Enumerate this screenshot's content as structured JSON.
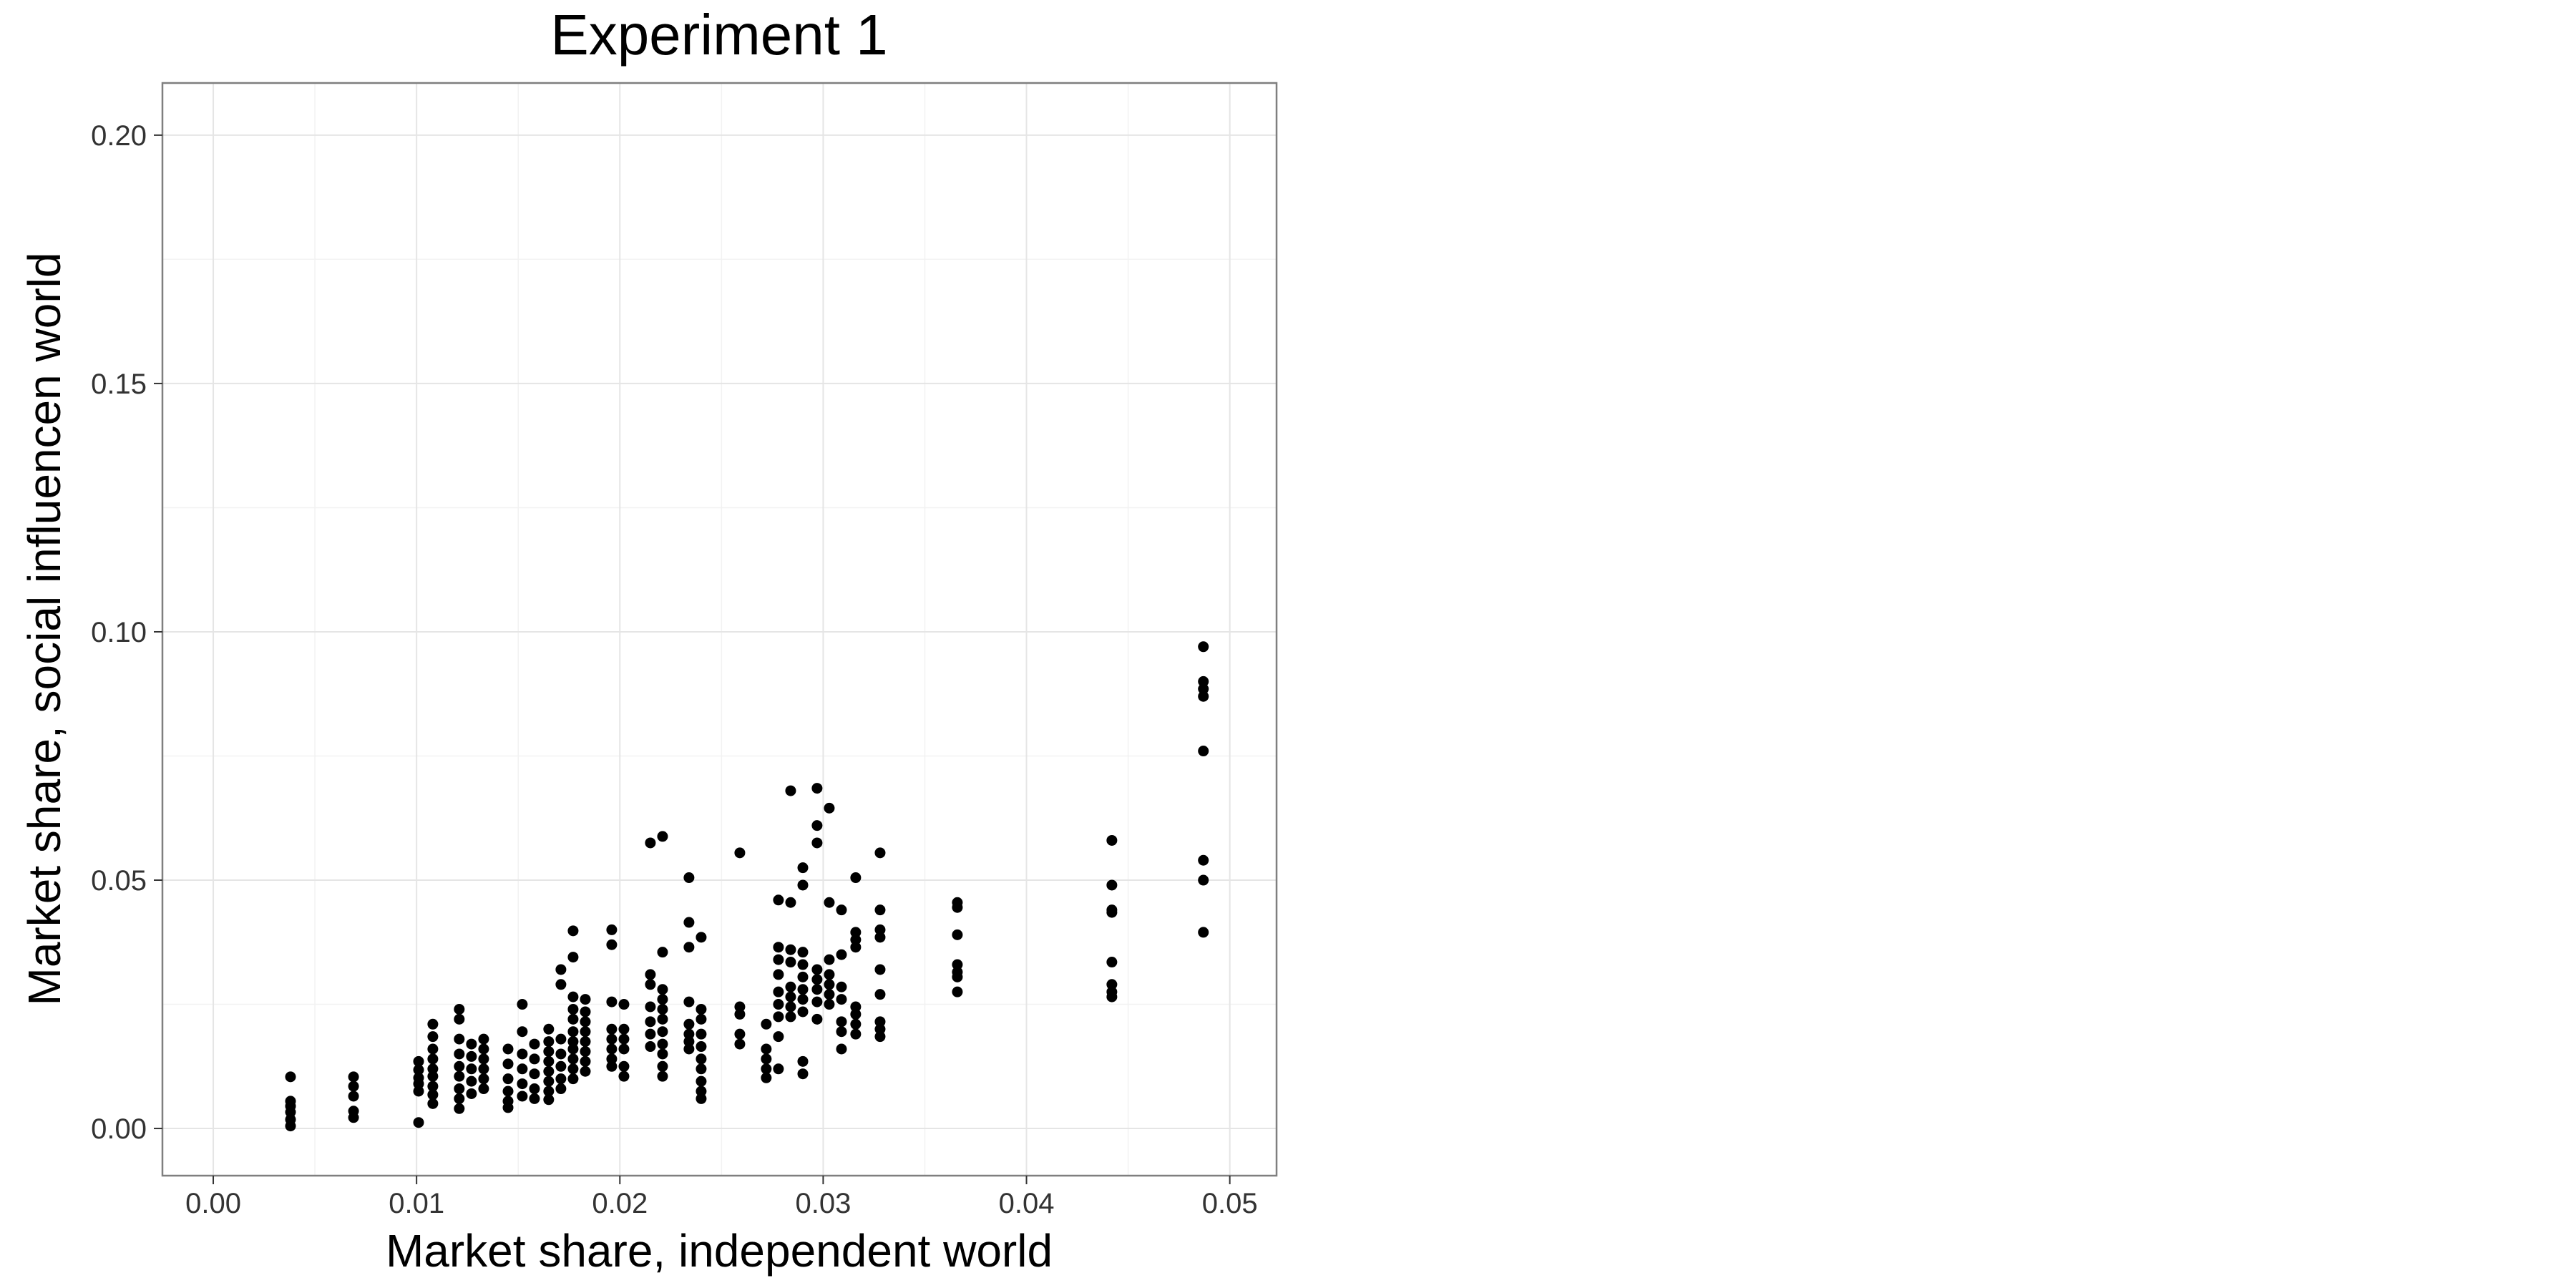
{
  "chart_data": {
    "type": "scatter",
    "title": "Experiment 1",
    "xlabel": "Market share, independent world",
    "ylabel": "Market share, social influencen world",
    "xlim": [
      -0.0025,
      0.0523
    ],
    "ylim": [
      -0.0095,
      0.2105
    ],
    "xticks": [
      0.0,
      0.01,
      0.02,
      0.03,
      0.04,
      0.05
    ],
    "xtick_labels": [
      "0.00",
      "0.01",
      "0.02",
      "0.03",
      "0.04",
      "0.05"
    ],
    "yticks": [
      0.0,
      0.05,
      0.1,
      0.15,
      0.2
    ],
    "ytick_labels": [
      "0.00",
      "0.05",
      "0.10",
      "0.15",
      "0.20"
    ],
    "grid": true,
    "legend": "none",
    "point_color": "#000000",
    "points": [
      {
        "x": 0.0038,
        "y": 0.0104
      },
      {
        "x": 0.0038,
        "y": 0.0055
      },
      {
        "x": 0.0038,
        "y": 0.0045
      },
      {
        "x": 0.0038,
        "y": 0.0033
      },
      {
        "x": 0.0038,
        "y": 0.0018
      },
      {
        "x": 0.0038,
        "y": 0.0005
      },
      {
        "x": 0.0069,
        "y": 0.0104
      },
      {
        "x": 0.0069,
        "y": 0.0085
      },
      {
        "x": 0.0069,
        "y": 0.0065
      },
      {
        "x": 0.0069,
        "y": 0.0035
      },
      {
        "x": 0.0069,
        "y": 0.0022
      },
      {
        "x": 0.0101,
        "y": 0.0135
      },
      {
        "x": 0.0101,
        "y": 0.0118
      },
      {
        "x": 0.0101,
        "y": 0.0102
      },
      {
        "x": 0.0101,
        "y": 0.009
      },
      {
        "x": 0.0101,
        "y": 0.0075
      },
      {
        "x": 0.0101,
        "y": 0.0012
      },
      {
        "x": 0.0108,
        "y": 0.021
      },
      {
        "x": 0.0108,
        "y": 0.0185
      },
      {
        "x": 0.0108,
        "y": 0.016
      },
      {
        "x": 0.0108,
        "y": 0.014
      },
      {
        "x": 0.0108,
        "y": 0.012
      },
      {
        "x": 0.0108,
        "y": 0.0105
      },
      {
        "x": 0.0108,
        "y": 0.0085
      },
      {
        "x": 0.0108,
        "y": 0.0068
      },
      {
        "x": 0.0108,
        "y": 0.005
      },
      {
        "x": 0.0121,
        "y": 0.024
      },
      {
        "x": 0.0121,
        "y": 0.022
      },
      {
        "x": 0.0121,
        "y": 0.018
      },
      {
        "x": 0.0121,
        "y": 0.015
      },
      {
        "x": 0.0121,
        "y": 0.0125
      },
      {
        "x": 0.0121,
        "y": 0.0105
      },
      {
        "x": 0.0121,
        "y": 0.008
      },
      {
        "x": 0.0121,
        "y": 0.006
      },
      {
        "x": 0.0121,
        "y": 0.004
      },
      {
        "x": 0.0127,
        "y": 0.017
      },
      {
        "x": 0.0127,
        "y": 0.0145
      },
      {
        "x": 0.0127,
        "y": 0.012
      },
      {
        "x": 0.0127,
        "y": 0.0095
      },
      {
        "x": 0.0127,
        "y": 0.007
      },
      {
        "x": 0.0133,
        "y": 0.018
      },
      {
        "x": 0.0133,
        "y": 0.016
      },
      {
        "x": 0.0133,
        "y": 0.014
      },
      {
        "x": 0.0133,
        "y": 0.012
      },
      {
        "x": 0.0133,
        "y": 0.01
      },
      {
        "x": 0.0133,
        "y": 0.008
      },
      {
        "x": 0.0145,
        "y": 0.016
      },
      {
        "x": 0.0145,
        "y": 0.013
      },
      {
        "x": 0.0145,
        "y": 0.01
      },
      {
        "x": 0.0145,
        "y": 0.0075
      },
      {
        "x": 0.0145,
        "y": 0.0055
      },
      {
        "x": 0.0145,
        "y": 0.0042
      },
      {
        "x": 0.0152,
        "y": 0.025
      },
      {
        "x": 0.0152,
        "y": 0.0195
      },
      {
        "x": 0.0152,
        "y": 0.015
      },
      {
        "x": 0.0152,
        "y": 0.012
      },
      {
        "x": 0.0152,
        "y": 0.009
      },
      {
        "x": 0.0152,
        "y": 0.0065
      },
      {
        "x": 0.0158,
        "y": 0.017
      },
      {
        "x": 0.0158,
        "y": 0.014
      },
      {
        "x": 0.0158,
        "y": 0.011
      },
      {
        "x": 0.0158,
        "y": 0.008
      },
      {
        "x": 0.0158,
        "y": 0.006
      },
      {
        "x": 0.0165,
        "y": 0.02
      },
      {
        "x": 0.0165,
        "y": 0.0175
      },
      {
        "x": 0.0165,
        "y": 0.0155
      },
      {
        "x": 0.0165,
        "y": 0.0135
      },
      {
        "x": 0.0165,
        "y": 0.0115
      },
      {
        "x": 0.0165,
        "y": 0.0095
      },
      {
        "x": 0.0165,
        "y": 0.0075
      },
      {
        "x": 0.0165,
        "y": 0.0058
      },
      {
        "x": 0.0171,
        "y": 0.032
      },
      {
        "x": 0.0171,
        "y": 0.029
      },
      {
        "x": 0.0171,
        "y": 0.018
      },
      {
        "x": 0.0171,
        "y": 0.015
      },
      {
        "x": 0.0171,
        "y": 0.0125
      },
      {
        "x": 0.0171,
        "y": 0.01
      },
      {
        "x": 0.0171,
        "y": 0.008
      },
      {
        "x": 0.0177,
        "y": 0.0398
      },
      {
        "x": 0.0177,
        "y": 0.0345
      },
      {
        "x": 0.0177,
        "y": 0.0265
      },
      {
        "x": 0.0177,
        "y": 0.024
      },
      {
        "x": 0.0177,
        "y": 0.022
      },
      {
        "x": 0.0177,
        "y": 0.0195
      },
      {
        "x": 0.0177,
        "y": 0.0175
      },
      {
        "x": 0.0177,
        "y": 0.016
      },
      {
        "x": 0.0177,
        "y": 0.014
      },
      {
        "x": 0.0177,
        "y": 0.012
      },
      {
        "x": 0.0177,
        "y": 0.01
      },
      {
        "x": 0.0183,
        "y": 0.026
      },
      {
        "x": 0.0183,
        "y": 0.0235
      },
      {
        "x": 0.0183,
        "y": 0.0215
      },
      {
        "x": 0.0183,
        "y": 0.0195
      },
      {
        "x": 0.0183,
        "y": 0.0175
      },
      {
        "x": 0.0183,
        "y": 0.0155
      },
      {
        "x": 0.0183,
        "y": 0.0135
      },
      {
        "x": 0.0183,
        "y": 0.0115
      },
      {
        "x": 0.0196,
        "y": 0.04
      },
      {
        "x": 0.0196,
        "y": 0.037
      },
      {
        "x": 0.0196,
        "y": 0.0255
      },
      {
        "x": 0.0196,
        "y": 0.02
      },
      {
        "x": 0.0196,
        "y": 0.018
      },
      {
        "x": 0.0196,
        "y": 0.016
      },
      {
        "x": 0.0196,
        "y": 0.014
      },
      {
        "x": 0.0196,
        "y": 0.0125
      },
      {
        "x": 0.0202,
        "y": 0.025
      },
      {
        "x": 0.0202,
        "y": 0.02
      },
      {
        "x": 0.0202,
        "y": 0.018
      },
      {
        "x": 0.0202,
        "y": 0.016
      },
      {
        "x": 0.0202,
        "y": 0.0125
      },
      {
        "x": 0.0202,
        "y": 0.0105
      },
      {
        "x": 0.0215,
        "y": 0.0575
      },
      {
        "x": 0.0215,
        "y": 0.031
      },
      {
        "x": 0.0215,
        "y": 0.029
      },
      {
        "x": 0.0215,
        "y": 0.0245
      },
      {
        "x": 0.0215,
        "y": 0.0215
      },
      {
        "x": 0.0215,
        "y": 0.019
      },
      {
        "x": 0.0215,
        "y": 0.0165
      },
      {
        "x": 0.0221,
        "y": 0.0588
      },
      {
        "x": 0.0221,
        "y": 0.0355
      },
      {
        "x": 0.0221,
        "y": 0.028
      },
      {
        "x": 0.0221,
        "y": 0.026
      },
      {
        "x": 0.0221,
        "y": 0.024
      },
      {
        "x": 0.0221,
        "y": 0.022
      },
      {
        "x": 0.0221,
        "y": 0.0195
      },
      {
        "x": 0.0221,
        "y": 0.017
      },
      {
        "x": 0.0221,
        "y": 0.015
      },
      {
        "x": 0.0221,
        "y": 0.0125
      },
      {
        "x": 0.0221,
        "y": 0.0105
      },
      {
        "x": 0.0234,
        "y": 0.0505
      },
      {
        "x": 0.0234,
        "y": 0.0415
      },
      {
        "x": 0.0234,
        "y": 0.0365
      },
      {
        "x": 0.0234,
        "y": 0.0255
      },
      {
        "x": 0.0234,
        "y": 0.021
      },
      {
        "x": 0.0234,
        "y": 0.019
      },
      {
        "x": 0.0234,
        "y": 0.0175
      },
      {
        "x": 0.0234,
        "y": 0.016
      },
      {
        "x": 0.024,
        "y": 0.0385
      },
      {
        "x": 0.024,
        "y": 0.024
      },
      {
        "x": 0.024,
        "y": 0.022
      },
      {
        "x": 0.024,
        "y": 0.019
      },
      {
        "x": 0.024,
        "y": 0.0165
      },
      {
        "x": 0.024,
        "y": 0.014
      },
      {
        "x": 0.024,
        "y": 0.012
      },
      {
        "x": 0.024,
        "y": 0.0095
      },
      {
        "x": 0.024,
        "y": 0.0075
      },
      {
        "x": 0.024,
        "y": 0.006
      },
      {
        "x": 0.0259,
        "y": 0.0555
      },
      {
        "x": 0.0259,
        "y": 0.0245
      },
      {
        "x": 0.0259,
        "y": 0.023
      },
      {
        "x": 0.0259,
        "y": 0.019
      },
      {
        "x": 0.0259,
        "y": 0.017
      },
      {
        "x": 0.0272,
        "y": 0.021
      },
      {
        "x": 0.0272,
        "y": 0.016
      },
      {
        "x": 0.0272,
        "y": 0.014
      },
      {
        "x": 0.0272,
        "y": 0.012
      },
      {
        "x": 0.0272,
        "y": 0.0102
      },
      {
        "x": 0.0278,
        "y": 0.046
      },
      {
        "x": 0.0278,
        "y": 0.0365
      },
      {
        "x": 0.0278,
        "y": 0.034
      },
      {
        "x": 0.0278,
        "y": 0.031
      },
      {
        "x": 0.0278,
        "y": 0.0275
      },
      {
        "x": 0.0278,
        "y": 0.025
      },
      {
        "x": 0.0278,
        "y": 0.0225
      },
      {
        "x": 0.0278,
        "y": 0.0185
      },
      {
        "x": 0.0278,
        "y": 0.012
      },
      {
        "x": 0.0284,
        "y": 0.068
      },
      {
        "x": 0.0284,
        "y": 0.0455
      },
      {
        "x": 0.0284,
        "y": 0.036
      },
      {
        "x": 0.0284,
        "y": 0.0335
      },
      {
        "x": 0.0284,
        "y": 0.0285
      },
      {
        "x": 0.0284,
        "y": 0.0265
      },
      {
        "x": 0.0284,
        "y": 0.0245
      },
      {
        "x": 0.0284,
        "y": 0.0225
      },
      {
        "x": 0.029,
        "y": 0.0525
      },
      {
        "x": 0.029,
        "y": 0.049
      },
      {
        "x": 0.029,
        "y": 0.0355
      },
      {
        "x": 0.029,
        "y": 0.033
      },
      {
        "x": 0.029,
        "y": 0.0305
      },
      {
        "x": 0.029,
        "y": 0.028
      },
      {
        "x": 0.029,
        "y": 0.026
      },
      {
        "x": 0.029,
        "y": 0.0235
      },
      {
        "x": 0.029,
        "y": 0.0135
      },
      {
        "x": 0.029,
        "y": 0.011
      },
      {
        "x": 0.0297,
        "y": 0.0685
      },
      {
        "x": 0.0297,
        "y": 0.061
      },
      {
        "x": 0.0297,
        "y": 0.0575
      },
      {
        "x": 0.0297,
        "y": 0.032
      },
      {
        "x": 0.0297,
        "y": 0.03
      },
      {
        "x": 0.0297,
        "y": 0.028
      },
      {
        "x": 0.0297,
        "y": 0.0255
      },
      {
        "x": 0.0297,
        "y": 0.022
      },
      {
        "x": 0.0303,
        "y": 0.0645
      },
      {
        "x": 0.0303,
        "y": 0.0455
      },
      {
        "x": 0.0303,
        "y": 0.034
      },
      {
        "x": 0.0303,
        "y": 0.031
      },
      {
        "x": 0.0303,
        "y": 0.029
      },
      {
        "x": 0.0303,
        "y": 0.027
      },
      {
        "x": 0.0303,
        "y": 0.025
      },
      {
        "x": 0.0309,
        "y": 0.044
      },
      {
        "x": 0.0309,
        "y": 0.035
      },
      {
        "x": 0.0309,
        "y": 0.0285
      },
      {
        "x": 0.0309,
        "y": 0.026
      },
      {
        "x": 0.0309,
        "y": 0.0215
      },
      {
        "x": 0.0309,
        "y": 0.0195
      },
      {
        "x": 0.0309,
        "y": 0.016
      },
      {
        "x": 0.0316,
        "y": 0.0505
      },
      {
        "x": 0.0316,
        "y": 0.0395
      },
      {
        "x": 0.0316,
        "y": 0.038
      },
      {
        "x": 0.0316,
        "y": 0.0365
      },
      {
        "x": 0.0316,
        "y": 0.0245
      },
      {
        "x": 0.0316,
        "y": 0.023
      },
      {
        "x": 0.0316,
        "y": 0.021
      },
      {
        "x": 0.0316,
        "y": 0.019
      },
      {
        "x": 0.0328,
        "y": 0.0555
      },
      {
        "x": 0.0328,
        "y": 0.044
      },
      {
        "x": 0.0328,
        "y": 0.04
      },
      {
        "x": 0.0328,
        "y": 0.0385
      },
      {
        "x": 0.0328,
        "y": 0.032
      },
      {
        "x": 0.0328,
        "y": 0.027
      },
      {
        "x": 0.0328,
        "y": 0.0215
      },
      {
        "x": 0.0328,
        "y": 0.02
      },
      {
        "x": 0.0328,
        "y": 0.0185
      },
      {
        "x": 0.0366,
        "y": 0.0455
      },
      {
        "x": 0.0366,
        "y": 0.0445
      },
      {
        "x": 0.0366,
        "y": 0.039
      },
      {
        "x": 0.0366,
        "y": 0.033
      },
      {
        "x": 0.0366,
        "y": 0.0315
      },
      {
        "x": 0.0366,
        "y": 0.0305
      },
      {
        "x": 0.0366,
        "y": 0.0275
      },
      {
        "x": 0.0442,
        "y": 0.058
      },
      {
        "x": 0.0442,
        "y": 0.049
      },
      {
        "x": 0.0442,
        "y": 0.044
      },
      {
        "x": 0.0442,
        "y": 0.0435
      },
      {
        "x": 0.0442,
        "y": 0.0335
      },
      {
        "x": 0.0442,
        "y": 0.029
      },
      {
        "x": 0.0442,
        "y": 0.0275
      },
      {
        "x": 0.0442,
        "y": 0.0265
      },
      {
        "x": 0.0487,
        "y": 0.097
      },
      {
        "x": 0.0487,
        "y": 0.09
      },
      {
        "x": 0.0487,
        "y": 0.0885
      },
      {
        "x": 0.0487,
        "y": 0.087
      },
      {
        "x": 0.0487,
        "y": 0.076
      },
      {
        "x": 0.0487,
        "y": 0.054
      },
      {
        "x": 0.0487,
        "y": 0.05
      },
      {
        "x": 0.0487,
        "y": 0.0395
      }
    ]
  }
}
